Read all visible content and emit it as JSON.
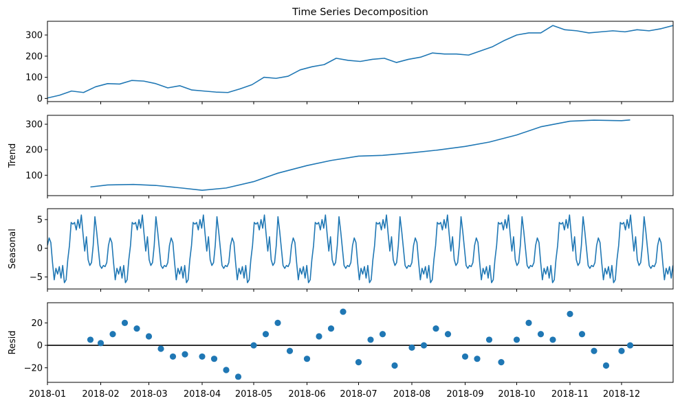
{
  "chart_data": {
    "type": "line",
    "title": "Time Series Decomposition",
    "color": "#1f77b4",
    "x_ticks": [
      "2018-01",
      "2018-02",
      "2018-03",
      "2018-04",
      "2018-05",
      "2018-06",
      "2018-07",
      "2018-08",
      "2018-09",
      "2018-10",
      "2018-11",
      "2018-12"
    ],
    "xlim": [
      "2018-01-01",
      "2018-12-31"
    ],
    "panels": [
      {
        "name": "observed",
        "ylabel": "",
        "kind": "line",
        "ylim": [
          -15,
          365
        ],
        "yticks": [
          0,
          100,
          200,
          300
        ],
        "ytick_labels": [
          "0",
          "100",
          "200",
          "300"
        ],
        "x": [
          "2018-01-01",
          "2018-01-08",
          "2018-01-15",
          "2018-01-22",
          "2018-01-29",
          "2018-02-05",
          "2018-02-12",
          "2018-02-19",
          "2018-02-26",
          "2018-03-05",
          "2018-03-12",
          "2018-03-19",
          "2018-03-26",
          "2018-04-02",
          "2018-04-09",
          "2018-04-16",
          "2018-04-23",
          "2018-04-30",
          "2018-05-07",
          "2018-05-14",
          "2018-05-21",
          "2018-05-28",
          "2018-06-04",
          "2018-06-11",
          "2018-06-18",
          "2018-06-25",
          "2018-07-02",
          "2018-07-09",
          "2018-07-16",
          "2018-07-23",
          "2018-07-30",
          "2018-08-06",
          "2018-08-13",
          "2018-08-20",
          "2018-08-27",
          "2018-09-03",
          "2018-09-10",
          "2018-09-17",
          "2018-09-24",
          "2018-10-01",
          "2018-10-08",
          "2018-10-15",
          "2018-10-22",
          "2018-10-29",
          "2018-11-05",
          "2018-11-12",
          "2018-11-19",
          "2018-11-26",
          "2018-12-03",
          "2018-12-10",
          "2018-12-17",
          "2018-12-24",
          "2018-12-31"
        ],
        "values": [
          2,
          15,
          35,
          28,
          55,
          70,
          68,
          85,
          82,
          70,
          50,
          60,
          40,
          35,
          30,
          28,
          45,
          65,
          100,
          95,
          105,
          135,
          150,
          160,
          190,
          180,
          175,
          185,
          190,
          170,
          185,
          195,
          215,
          210,
          210,
          205,
          225,
          245,
          275,
          300,
          310,
          310,
          345,
          325,
          320,
          310,
          315,
          320,
          315,
          325,
          320,
          330,
          345
        ]
      },
      {
        "name": "trend",
        "ylabel": "Trend",
        "kind": "line",
        "ylim": [
          20,
          335
        ],
        "yticks": [
          100,
          200,
          300
        ],
        "ytick_labels": [
          "100",
          "200",
          "300"
        ],
        "x": [
          "2018-01-26",
          "2018-02-05",
          "2018-02-20",
          "2018-03-05",
          "2018-03-20",
          "2018-04-01",
          "2018-04-15",
          "2018-05-01",
          "2018-05-15",
          "2018-06-01",
          "2018-06-15",
          "2018-07-01",
          "2018-07-15",
          "2018-08-01",
          "2018-08-15",
          "2018-09-01",
          "2018-09-15",
          "2018-10-01",
          "2018-10-15",
          "2018-11-01",
          "2018-11-15",
          "2018-12-01",
          "2018-12-06"
        ],
        "values": [
          54,
          62,
          64,
          60,
          50,
          41,
          50,
          75,
          108,
          138,
          158,
          175,
          178,
          188,
          198,
          213,
          230,
          258,
          290,
          312,
          316,
          314,
          317
        ]
      },
      {
        "name": "seasonal",
        "ylabel": "Seasonal",
        "kind": "line",
        "ylim": [
          -7.1,
          6.9
        ],
        "yticks": [
          -5,
          0,
          5
        ],
        "ytick_labels": [
          "−5",
          "0",
          "5"
        ],
        "period_days": 35.5,
        "pattern": [
          0.5,
          1.8,
          1.0,
          -2.5,
          -5.5,
          -3.5,
          -4.5,
          -3.2,
          -5.2,
          -3.0,
          -6.0,
          -5.5,
          -2.0,
          0.5,
          4.5,
          4.2,
          4.5,
          3.2,
          5.0,
          3.5,
          5.8,
          2.5,
          -0.5,
          2.0,
          -2.0,
          -3.0,
          -2.5,
          0.5,
          5.5,
          3.0,
          0.0,
          -3.0,
          -3.5,
          -3.0,
          -3.2,
          -2.5
        ]
      },
      {
        "name": "resid",
        "ylabel": "Resid",
        "kind": "scatter",
        "ylim": [
          -33,
          38
        ],
        "yticks": [
          -20,
          0,
          20
        ],
        "ytick_labels": [
          "−20",
          "0",
          "20"
        ],
        "zero_line": true,
        "x": [
          "2018-01-26",
          "2018-02-01",
          "2018-02-08",
          "2018-02-15",
          "2018-02-22",
          "2018-03-01",
          "2018-03-08",
          "2018-03-15",
          "2018-03-22",
          "2018-04-01",
          "2018-04-08",
          "2018-04-15",
          "2018-04-22",
          "2018-05-01",
          "2018-05-08",
          "2018-05-15",
          "2018-05-22",
          "2018-06-01",
          "2018-06-08",
          "2018-06-15",
          "2018-06-22",
          "2018-07-01",
          "2018-07-08",
          "2018-07-15",
          "2018-07-22",
          "2018-08-01",
          "2018-08-08",
          "2018-08-15",
          "2018-08-22",
          "2018-09-01",
          "2018-09-08",
          "2018-09-15",
          "2018-09-22",
          "2018-10-01",
          "2018-10-08",
          "2018-10-15",
          "2018-10-22",
          "2018-11-01",
          "2018-11-08",
          "2018-11-15",
          "2018-11-22",
          "2018-12-01",
          "2018-12-06"
        ],
        "values": [
          5,
          2,
          10,
          20,
          15,
          8,
          -3,
          -10,
          -8,
          -10,
          -12,
          -22,
          -28,
          0,
          10,
          20,
          -5,
          -12,
          8,
          15,
          30,
          -15,
          5,
          10,
          -18,
          -2,
          0,
          15,
          10,
          -10,
          -12,
          5,
          -15,
          5,
          20,
          10,
          5,
          28,
          10,
          -5,
          -18,
          -5,
          0
        ]
      }
    ]
  }
}
